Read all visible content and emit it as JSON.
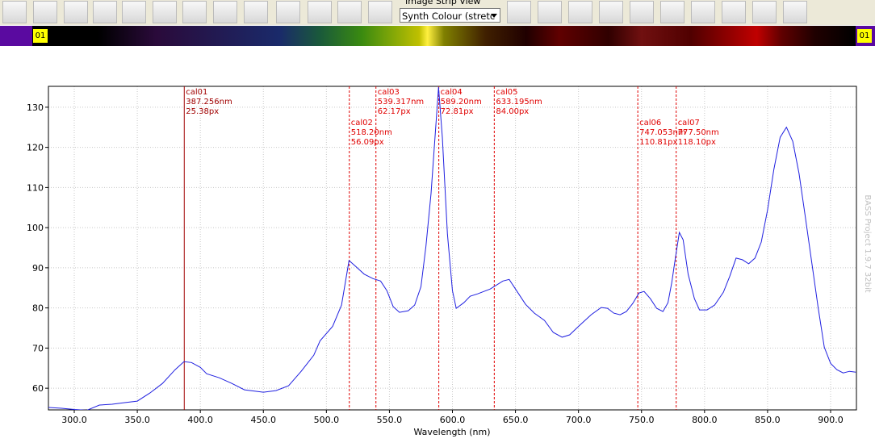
{
  "toolbar": {
    "strip_label": "Image Strip View",
    "dropdown": "Synth Colour (stretc"
  },
  "strip": {
    "left_label": "01",
    "right_label": "01"
  },
  "watermark": "BASS Project 1.9.7  32bit",
  "chart_data": {
    "type": "line",
    "x_label": "Wavelength (nm)",
    "xlim": [
      279.5,
      920.5
    ],
    "ylim": [
      54.6,
      135.2
    ],
    "xticks": [
      {
        "value": 300,
        "label": "300.0"
      },
      {
        "value": 350,
        "label": "350.0"
      },
      {
        "value": 400,
        "label": "400.0"
      },
      {
        "value": 450,
        "label": "450.0"
      },
      {
        "value": 500,
        "label": "500.0"
      },
      {
        "value": 550,
        "label": "550.0"
      },
      {
        "value": 600,
        "label": "600.0"
      },
      {
        "value": 650,
        "label": "650.0"
      },
      {
        "value": 700,
        "label": "700.0"
      },
      {
        "value": 750,
        "label": "750.0"
      },
      {
        "value": 800,
        "label": "800.0"
      },
      {
        "value": 850,
        "label": "850.0"
      },
      {
        "value": 900,
        "label": "900.0"
      }
    ],
    "yticks": [
      60,
      70,
      80,
      90,
      100,
      110,
      120,
      130
    ],
    "grid": true,
    "series": [
      {
        "color": "#2020e0",
        "x": [
          279.5,
          290,
          300,
          310,
          320,
          330,
          340,
          350,
          360,
          370,
          380,
          387,
          393,
          400,
          405,
          415,
          425,
          435,
          445,
          450,
          460,
          470,
          480,
          490,
          495,
          505,
          512,
          518,
          523,
          530,
          537,
          543,
          548,
          553,
          558,
          565,
          570,
          575,
          579,
          583,
          589,
          592,
          596,
          600,
          603,
          609,
          614,
          620,
          630,
          640,
          645,
          650,
          658,
          665,
          673,
          680,
          687,
          693,
          700,
          710,
          718,
          723,
          728,
          733,
          738,
          743,
          748,
          752,
          757,
          762,
          767,
          771,
          774,
          777,
          780,
          783,
          787,
          792,
          796,
          802,
          808,
          815,
          820,
          825,
          830,
          835,
          840,
          845,
          850,
          855,
          860,
          865,
          870,
          875,
          880,
          885,
          890,
          895,
          900,
          905,
          910,
          915,
          920
        ],
        "values": [
          55.2,
          55,
          54.7,
          54.5,
          55.8,
          56,
          56.4,
          56.8,
          58.8,
          61.2,
          64.6,
          66.6,
          66.4,
          65.2,
          63.6,
          62.6,
          61.2,
          59.6,
          59.2,
          59,
          59.4,
          60.6,
          64.2,
          68.2,
          71.8,
          75.4,
          80.7,
          91.8,
          90.4,
          88.4,
          87.3,
          86.7,
          84.3,
          80.3,
          78.9,
          79.3,
          80.7,
          85.3,
          95.4,
          108.5,
          135,
          122.5,
          98.4,
          84.3,
          79.9,
          81.3,
          82.9,
          83.5,
          84.7,
          86.7,
          87.1,
          84.7,
          80.9,
          78.7,
          76.9,
          73.9,
          72.7,
          73.3,
          75.4,
          78.3,
          80.1,
          79.9,
          78.7,
          78.3,
          79.1,
          81.1,
          83.7,
          84.1,
          82.3,
          79.9,
          79.1,
          81.3,
          86.3,
          92.7,
          98.8,
          97,
          88.4,
          82.3,
          79.5,
          79.5,
          80.7,
          83.9,
          87.9,
          92.4,
          92,
          91,
          92.4,
          96.4,
          104.4,
          114.5,
          122.5,
          125,
          121.5,
          113.5,
          102.5,
          91.4,
          80.3,
          70.2,
          66.2,
          64.6,
          63.8,
          64.2,
          64
        ]
      }
    ],
    "annotations": [
      {
        "x": 387.256,
        "color": "#a00000",
        "line_style": "solid",
        "lines": [
          "cal01",
          "387.256nm",
          "25.38px"
        ]
      },
      {
        "x": 518.2,
        "color": "#e00000",
        "line_style": "dashed",
        "lines": [
          "cal02",
          "518.20nm",
          "56.09px"
        ]
      },
      {
        "x": 539.317,
        "color": "#e00000",
        "line_style": "dashed",
        "lines": [
          "cal03",
          "539.317nm",
          "62.17px"
        ]
      },
      {
        "x": 589.2,
        "color": "#e00000",
        "line_style": "dashed",
        "lines": [
          "cal04",
          "589.20nm",
          "72.81px"
        ]
      },
      {
        "x": 633.195,
        "color": "#e00000",
        "line_style": "dashed",
        "lines": [
          "cal05",
          "633.195nm",
          "84.00px"
        ]
      },
      {
        "x": 747.053,
        "color": "#e00000",
        "line_style": "dashed",
        "lines": [
          "cal06",
          "747.053nm",
          "110.81px"
        ]
      },
      {
        "x": 777.5,
        "color": "#e00000",
        "line_style": "dashed",
        "lines": [
          "cal07",
          "777.50nm",
          "118.10px"
        ]
      }
    ]
  }
}
